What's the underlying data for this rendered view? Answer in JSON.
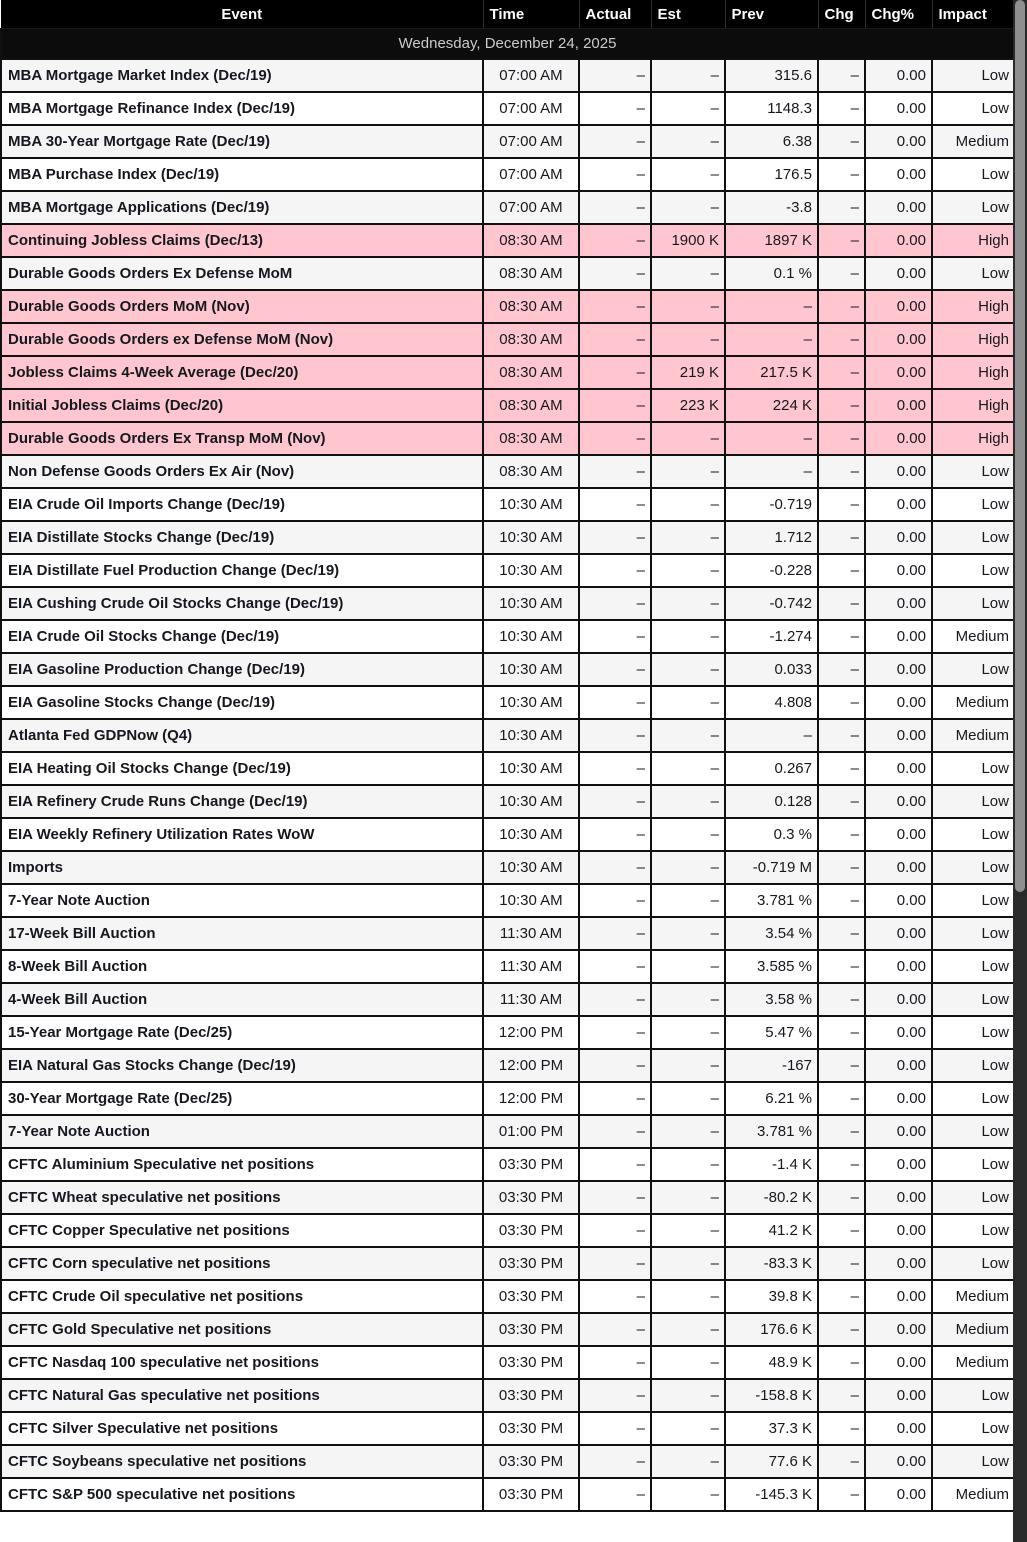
{
  "table": {
    "columns": [
      "Event",
      "Time",
      "Actual",
      "Est",
      "Prev",
      "Chg",
      "Chg%",
      "Impact"
    ],
    "date_header": "Wednesday, December 24, 2025",
    "rows": [
      {
        "event": "MBA Mortgage Market Index (Dec/19)",
        "time": "07:00 AM",
        "actual": "–",
        "est": "–",
        "prev": "315.6",
        "chg": "–",
        "chg_pct": "0.00",
        "impact": "Low"
      },
      {
        "event": "MBA Mortgage Refinance Index (Dec/19)",
        "time": "07:00 AM",
        "actual": "–",
        "est": "–",
        "prev": "1148.3",
        "chg": "–",
        "chg_pct": "0.00",
        "impact": "Low"
      },
      {
        "event": "MBA 30-Year Mortgage Rate (Dec/19)",
        "time": "07:00 AM",
        "actual": "–",
        "est": "–",
        "prev": "6.38",
        "chg": "–",
        "chg_pct": "0.00",
        "impact": "Medium"
      },
      {
        "event": "MBA Purchase Index (Dec/19)",
        "time": "07:00 AM",
        "actual": "–",
        "est": "–",
        "prev": "176.5",
        "chg": "–",
        "chg_pct": "0.00",
        "impact": "Low"
      },
      {
        "event": "MBA Mortgage Applications (Dec/19)",
        "time": "07:00 AM",
        "actual": "–",
        "est": "–",
        "prev": "-3.8",
        "chg": "–",
        "chg_pct": "0.00",
        "impact": "Low"
      },
      {
        "event": "Continuing Jobless Claims (Dec/13)",
        "time": "08:30 AM",
        "actual": "–",
        "est": "1900 K",
        "prev": "1897 K",
        "chg": "–",
        "chg_pct": "0.00",
        "impact": "High"
      },
      {
        "event": "Durable Goods Orders Ex Defense MoM",
        "time": "08:30 AM",
        "actual": "–",
        "est": "–",
        "prev": "0.1 %",
        "chg": "–",
        "chg_pct": "0.00",
        "impact": "Low"
      },
      {
        "event": "Durable Goods Orders MoM (Nov)",
        "time": "08:30 AM",
        "actual": "–",
        "est": "–",
        "prev": "–",
        "chg": "–",
        "chg_pct": "0.00",
        "impact": "High"
      },
      {
        "event": "Durable Goods Orders ex Defense MoM (Nov)",
        "time": "08:30 AM",
        "actual": "–",
        "est": "–",
        "prev": "–",
        "chg": "–",
        "chg_pct": "0.00",
        "impact": "High"
      },
      {
        "event": "Jobless Claims 4-Week Average (Dec/20)",
        "time": "08:30 AM",
        "actual": "–",
        "est": "219 K",
        "prev": "217.5 K",
        "chg": "–",
        "chg_pct": "0.00",
        "impact": "High"
      },
      {
        "event": "Initial Jobless Claims (Dec/20)",
        "time": "08:30 AM",
        "actual": "–",
        "est": "223 K",
        "prev": "224 K",
        "chg": "–",
        "chg_pct": "0.00",
        "impact": "High"
      },
      {
        "event": "Durable Goods Orders Ex Transp MoM (Nov)",
        "time": "08:30 AM",
        "actual": "–",
        "est": "–",
        "prev": "–",
        "chg": "–",
        "chg_pct": "0.00",
        "impact": "High"
      },
      {
        "event": "Non Defense Goods Orders Ex Air (Nov)",
        "time": "08:30 AM",
        "actual": "–",
        "est": "–",
        "prev": "–",
        "chg": "–",
        "chg_pct": "0.00",
        "impact": "Low"
      },
      {
        "event": "EIA Crude Oil Imports Change (Dec/19)",
        "time": "10:30 AM",
        "actual": "–",
        "est": "–",
        "prev": "-0.719",
        "chg": "–",
        "chg_pct": "0.00",
        "impact": "Low"
      },
      {
        "event": "EIA Distillate Stocks Change (Dec/19)",
        "time": "10:30 AM",
        "actual": "–",
        "est": "–",
        "prev": "1.712",
        "chg": "–",
        "chg_pct": "0.00",
        "impact": "Low"
      },
      {
        "event": "EIA Distillate Fuel Production Change (Dec/19)",
        "time": "10:30 AM",
        "actual": "–",
        "est": "–",
        "prev": "-0.228",
        "chg": "–",
        "chg_pct": "0.00",
        "impact": "Low"
      },
      {
        "event": "EIA Cushing Crude Oil Stocks Change (Dec/19)",
        "time": "10:30 AM",
        "actual": "–",
        "est": "–",
        "prev": "-0.742",
        "chg": "–",
        "chg_pct": "0.00",
        "impact": "Low"
      },
      {
        "event": "EIA Crude Oil Stocks Change (Dec/19)",
        "time": "10:30 AM",
        "actual": "–",
        "est": "–",
        "prev": "-1.274",
        "chg": "–",
        "chg_pct": "0.00",
        "impact": "Medium"
      },
      {
        "event": "EIA Gasoline Production Change (Dec/19)",
        "time": "10:30 AM",
        "actual": "–",
        "est": "–",
        "prev": "0.033",
        "chg": "–",
        "chg_pct": "0.00",
        "impact": "Low"
      },
      {
        "event": "EIA Gasoline Stocks Change (Dec/19)",
        "time": "10:30 AM",
        "actual": "–",
        "est": "–",
        "prev": "4.808",
        "chg": "–",
        "chg_pct": "0.00",
        "impact": "Medium"
      },
      {
        "event": "Atlanta Fed GDPNow (Q4)",
        "time": "10:30 AM",
        "actual": "–",
        "est": "–",
        "prev": "–",
        "chg": "–",
        "chg_pct": "0.00",
        "impact": "Medium"
      },
      {
        "event": "EIA Heating Oil Stocks Change (Dec/19)",
        "time": "10:30 AM",
        "actual": "–",
        "est": "–",
        "prev": "0.267",
        "chg": "–",
        "chg_pct": "0.00",
        "impact": "Low"
      },
      {
        "event": "EIA Refinery Crude Runs Change (Dec/19)",
        "time": "10:30 AM",
        "actual": "–",
        "est": "–",
        "prev": "0.128",
        "chg": "–",
        "chg_pct": "0.00",
        "impact": "Low"
      },
      {
        "event": "EIA Weekly Refinery Utilization Rates WoW",
        "time": "10:30 AM",
        "actual": "–",
        "est": "–",
        "prev": "0.3 %",
        "chg": "–",
        "chg_pct": "0.00",
        "impact": "Low"
      },
      {
        "event": "Imports",
        "time": "10:30 AM",
        "actual": "–",
        "est": "–",
        "prev": "-0.719 M",
        "chg": "–",
        "chg_pct": "0.00",
        "impact": "Low"
      },
      {
        "event": "7-Year Note Auction",
        "time": "10:30 AM",
        "actual": "–",
        "est": "–",
        "prev": "3.781 %",
        "chg": "–",
        "chg_pct": "0.00",
        "impact": "Low"
      },
      {
        "event": "17-Week Bill Auction",
        "time": "11:30 AM",
        "actual": "–",
        "est": "–",
        "prev": "3.54 %",
        "chg": "–",
        "chg_pct": "0.00",
        "impact": "Low"
      },
      {
        "event": "8-Week Bill Auction",
        "time": "11:30 AM",
        "actual": "–",
        "est": "–",
        "prev": "3.585 %",
        "chg": "–",
        "chg_pct": "0.00",
        "impact": "Low"
      },
      {
        "event": "4-Week Bill Auction",
        "time": "11:30 AM",
        "actual": "–",
        "est": "–",
        "prev": "3.58 %",
        "chg": "–",
        "chg_pct": "0.00",
        "impact": "Low"
      },
      {
        "event": "15-Year Mortgage Rate (Dec/25)",
        "time": "12:00 PM",
        "actual": "–",
        "est": "–",
        "prev": "5.47 %",
        "chg": "–",
        "chg_pct": "0.00",
        "impact": "Low"
      },
      {
        "event": "EIA Natural Gas Stocks Change (Dec/19)",
        "time": "12:00 PM",
        "actual": "–",
        "est": "–",
        "prev": "-167",
        "chg": "–",
        "chg_pct": "0.00",
        "impact": "Low"
      },
      {
        "event": "30-Year Mortgage Rate (Dec/25)",
        "time": "12:00 PM",
        "actual": "–",
        "est": "–",
        "prev": "6.21 %",
        "chg": "–",
        "chg_pct": "0.00",
        "impact": "Low"
      },
      {
        "event": "7-Year Note Auction",
        "time": "01:00 PM",
        "actual": "–",
        "est": "–",
        "prev": "3.781 %",
        "chg": "–",
        "chg_pct": "0.00",
        "impact": "Low"
      },
      {
        "event": "CFTC Aluminium Speculative net positions",
        "time": "03:30 PM",
        "actual": "–",
        "est": "–",
        "prev": "-1.4 K",
        "chg": "–",
        "chg_pct": "0.00",
        "impact": "Low"
      },
      {
        "event": "CFTC Wheat speculative net positions",
        "time": "03:30 PM",
        "actual": "–",
        "est": "–",
        "prev": "-80.2 K",
        "chg": "–",
        "chg_pct": "0.00",
        "impact": "Low"
      },
      {
        "event": "CFTC Copper Speculative net positions",
        "time": "03:30 PM",
        "actual": "–",
        "est": "–",
        "prev": "41.2 K",
        "chg": "–",
        "chg_pct": "0.00",
        "impact": "Low"
      },
      {
        "event": "CFTC Corn speculative net positions",
        "time": "03:30 PM",
        "actual": "–",
        "est": "–",
        "prev": "-83.3 K",
        "chg": "–",
        "chg_pct": "0.00",
        "impact": "Low"
      },
      {
        "event": "CFTC Crude Oil speculative net positions",
        "time": "03:30 PM",
        "actual": "–",
        "est": "–",
        "prev": "39.8 K",
        "chg": "–",
        "chg_pct": "0.00",
        "impact": "Medium"
      },
      {
        "event": "CFTC Gold Speculative net positions",
        "time": "03:30 PM",
        "actual": "–",
        "est": "–",
        "prev": "176.6 K",
        "chg": "–",
        "chg_pct": "0.00",
        "impact": "Medium"
      },
      {
        "event": "CFTC Nasdaq 100 speculative net positions",
        "time": "03:30 PM",
        "actual": "–",
        "est": "–",
        "prev": "48.9 K",
        "chg": "–",
        "chg_pct": "0.00",
        "impact": "Medium"
      },
      {
        "event": "CFTC Natural Gas speculative net positions",
        "time": "03:30 PM",
        "actual": "–",
        "est": "–",
        "prev": "-158.8 K",
        "chg": "–",
        "chg_pct": "0.00",
        "impact": "Low"
      },
      {
        "event": "CFTC Silver Speculative net positions",
        "time": "03:30 PM",
        "actual": "–",
        "est": "–",
        "prev": "37.3 K",
        "chg": "–",
        "chg_pct": "0.00",
        "impact": "Low"
      },
      {
        "event": "CFTC Soybeans speculative net positions",
        "time": "03:30 PM",
        "actual": "–",
        "est": "–",
        "prev": "77.6 K",
        "chg": "–",
        "chg_pct": "0.00",
        "impact": "Low"
      },
      {
        "event": "CFTC S&P 500 speculative net positions",
        "time": "03:30 PM",
        "actual": "–",
        "est": "–",
        "prev": "-145.3 K",
        "chg": "–",
        "chg_pct": "0.00",
        "impact": "Medium"
      }
    ]
  },
  "colors": {
    "header_bg": "#000000",
    "header_text": "#ffffff",
    "date_row_bg": "#0c0c0c",
    "date_row_text": "#cbcbcb",
    "high_impact_row_bg": "#ffc6cf",
    "alt_row_bg": "#f5f5f5",
    "row_text": "#15181e",
    "scrollbar_track": "#2a2a2a",
    "scrollbar_thumb": "#8f8f8f"
  }
}
